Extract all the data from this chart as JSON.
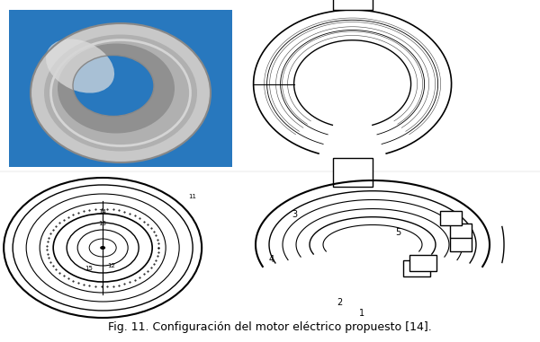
{
  "caption": "Fig. 11. Configuración del motor eléctrico propuesto [14].",
  "caption_fontsize": 9,
  "background_color": "#ffffff",
  "blue_bg_color": "#2878BE",
  "fig_width": 6.0,
  "fig_height": 3.81
}
